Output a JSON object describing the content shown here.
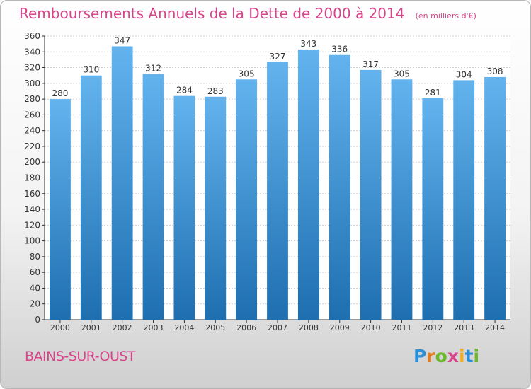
{
  "title": "Remboursements Annuels de la Dette de 2000 à 2014",
  "unit": "(en milliers d'€)",
  "city": "BAINS-SUR-OUST",
  "logo": "Proxiti",
  "colors": {
    "bar": "#3a9be0",
    "bar_light": "#62b3ee",
    "bar_dark": "#1e6fb0",
    "title": "#d6448a",
    "grid": "#cfcfcf",
    "axis": "#333333"
  },
  "chart_data": {
    "type": "bar",
    "categories": [
      "2000",
      "2001",
      "2002",
      "2003",
      "2004",
      "2005",
      "2006",
      "2007",
      "2008",
      "2009",
      "2010",
      "2011",
      "2012",
      "2013",
      "2014"
    ],
    "values": [
      280,
      310,
      347,
      312,
      284,
      283,
      305,
      327,
      343,
      336,
      317,
      305,
      281,
      304,
      308
    ],
    "ylim": [
      0,
      360
    ],
    "yticks": [
      0,
      20,
      40,
      60,
      80,
      100,
      120,
      140,
      160,
      180,
      200,
      220,
      240,
      260,
      280,
      300,
      320,
      340,
      360
    ],
    "grid": true,
    "data_labels": true
  }
}
